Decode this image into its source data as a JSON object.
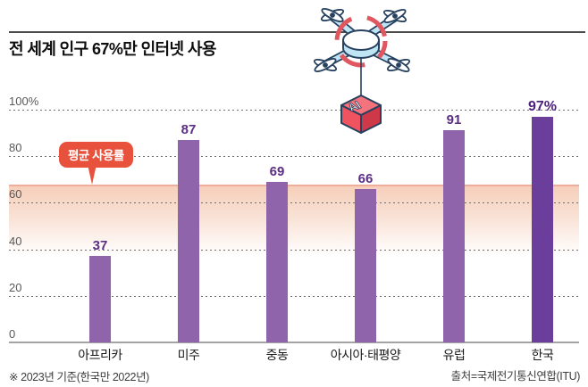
{
  "header": {
    "title": "전 세계 인구 67%만 인터넷 사용"
  },
  "chart_data": {
    "type": "bar",
    "title": "전 세계 인구 67%만 인터넷 사용",
    "categories": [
      "아프리카",
      "미주",
      "중동",
      "아시아·태평양",
      "유럽",
      "한국"
    ],
    "values": [
      37,
      87,
      69,
      66,
      91,
      97
    ],
    "value_labels": [
      "37",
      "87",
      "69",
      "66",
      "91",
      "97%"
    ],
    "highlight_index": 5,
    "xlabel": "",
    "ylabel": "",
    "ylim": [
      0,
      100
    ],
    "grid": "dotted-horizontal",
    "y_ticks": [
      {
        "label": "100%",
        "value": 100
      },
      {
        "label": "80",
        "value": 80
      },
      {
        "label": "60",
        "value": 60
      },
      {
        "label": "40",
        "value": 40
      },
      {
        "label": "20",
        "value": 20
      },
      {
        "label": "0",
        "value": 0
      }
    ],
    "average": {
      "label": "평균 사용률",
      "value": 67
    }
  },
  "colors": {
    "bar": "#8f64ab",
    "bar_highlight": "#6b3e9b",
    "value_label": "#5b2d83",
    "badge_red": "#e8513b",
    "band_line": "#eeae9b",
    "band_fill": "#f6cfba"
  },
  "illustration": {
    "name": "ai-delivery-drone",
    "box_label": "AI"
  },
  "footer": {
    "note": "※ 2023년 기준(한국만 2022년)",
    "source": "출처=국제전기통신연합(ITU)"
  }
}
